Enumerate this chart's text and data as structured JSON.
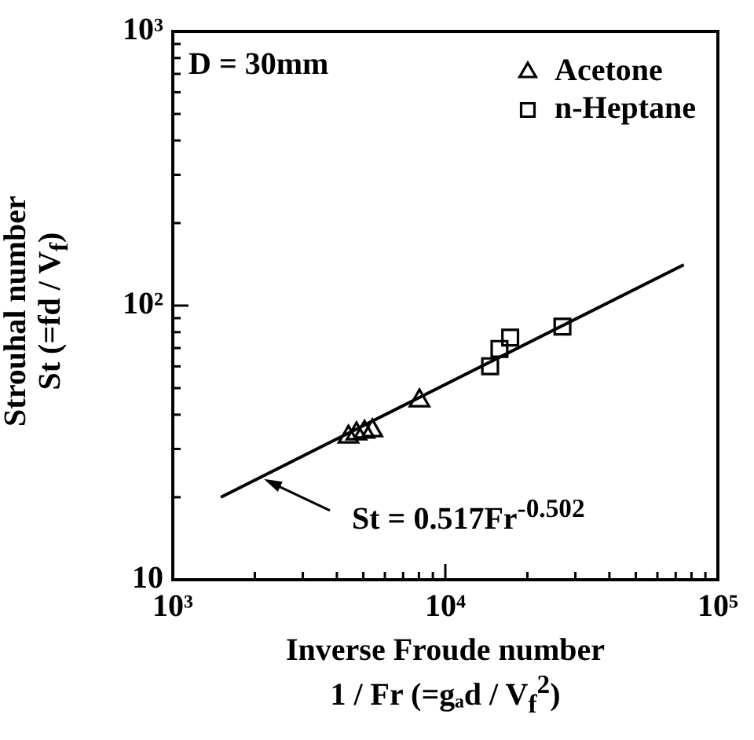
{
  "chart_data": {
    "type": "scatter",
    "xlabel": "Inverse Froude number\n1 / Fr (=gₐd / V$_{f}$$^{2}$)",
    "ylabel": "Strouhal number\nSt (=fd / V$_{f}$)",
    "log": "xy",
    "xlim": [
      1000,
      100000
    ],
    "xticks": [
      {
        "value": 1000,
        "label": "10³"
      },
      {
        "value": 10000,
        "label": "10⁴"
      },
      {
        "value": 100000,
        "label": "10⁵"
      }
    ],
    "ylim": [
      10,
      1000
    ],
    "yticks": [
      10,
      {
        "value": 100,
        "label": "10²"
      },
      {
        "value": 1000,
        "label": "10³"
      }
    ],
    "grid": false,
    "legend": "top right",
    "series": [
      {
        "name": "Acetone",
        "color": "#000000",
        "marker": "triangle",
        "x": [
          4410,
          4720,
          5050,
          5400,
          8040
        ],
        "values": [
          33.2,
          34.1,
          34.6,
          35.0,
          45.0
        ]
      },
      {
        "name": "n-Heptane",
        "color": "#000000",
        "marker": "square",
        "x": [
          14600,
          15800,
          17300,
          26900
        ],
        "values": [
          60.1,
          69.5,
          76.4,
          83.8
        ]
      },
      {
        "type": "line",
        "color": "#000000",
        "marker": "none",
        "x": [
          1500,
          75000
        ],
        "values": [
          20,
          141
        ]
      }
    ],
    "annotations": [
      "D = 30mm",
      {
        "text": "St = 0.517Fr$^{-0.502}$",
        "x": 2160,
        "y": 23.3
      }
    ]
  }
}
